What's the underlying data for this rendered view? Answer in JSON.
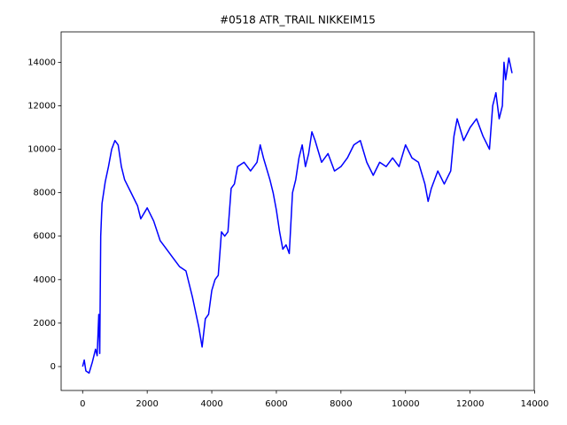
{
  "chart_data": {
    "type": "line",
    "title": "#0518 ATR_TRAIL NIKKEIM15",
    "color": "#0000ff",
    "x": [
      0,
      50,
      100,
      200,
      300,
      400,
      450,
      500,
      530,
      560,
      600,
      700,
      800,
      900,
      1000,
      1100,
      1200,
      1300,
      1500,
      1700,
      1800,
      2000,
      2200,
      2400,
      2600,
      2800,
      3000,
      3200,
      3400,
      3500,
      3600,
      3700,
      3800,
      3900,
      4000,
      4100,
      4200,
      4300,
      4400,
      4500,
      4600,
      4700,
      4800,
      5000,
      5200,
      5400,
      5500,
      5600,
      5800,
      5900,
      6000,
      6100,
      6200,
      6300,
      6400,
      6500,
      6600,
      6700,
      6800,
      6900,
      7000,
      7100,
      7200,
      7400,
      7600,
      7800,
      8000,
      8200,
      8400,
      8600,
      8800,
      9000,
      9200,
      9400,
      9600,
      9800,
      10000,
      10200,
      10400,
      10600,
      10700,
      10800,
      11000,
      11200,
      11400,
      11500,
      11600,
      11800,
      12000,
      12200,
      12400,
      12600,
      12700,
      12800,
      12900,
      13000,
      13050,
      13100,
      13200,
      13300
    ],
    "values": [
      0,
      300,
      -200,
      -300,
      200,
      800,
      500,
      2400,
      600,
      6000,
      7500,
      8500,
      9200,
      10000,
      10400,
      10200,
      9200,
      8600,
      8000,
      7400,
      6800,
      7300,
      6700,
      5800,
      5400,
      5000,
      4600,
      4400,
      3200,
      2500,
      1800,
      900,
      2200,
      2400,
      3500,
      4000,
      4200,
      6200,
      6000,
      6200,
      8200,
      8400,
      9200,
      9400,
      9000,
      9400,
      10200,
      9600,
      8600,
      8000,
      7200,
      6200,
      5400,
      5600,
      5200,
      8000,
      8600,
      9600,
      10200,
      9200,
      9800,
      10800,
      10400,
      9400,
      9800,
      9000,
      9200,
      9600,
      10200,
      10400,
      9400,
      8800,
      9400,
      9200,
      9600,
      9200,
      10200,
      9600,
      9400,
      8400,
      7600,
      8200,
      9000,
      8400,
      9000,
      10600,
      11400,
      10400,
      11000,
      11400,
      10600,
      10000,
      12000,
      12600,
      11400,
      12000,
      14000,
      13200,
      14200,
      13500
    ],
    "xlim": [
      -666,
      13986
    ],
    "ylim": [
      -1100,
      15400
    ],
    "xticks": [
      0,
      2000,
      4000,
      6000,
      8000,
      10000,
      12000,
      14000
    ],
    "yticks": [
      0,
      2000,
      4000,
      6000,
      8000,
      10000,
      12000,
      14000
    ]
  }
}
